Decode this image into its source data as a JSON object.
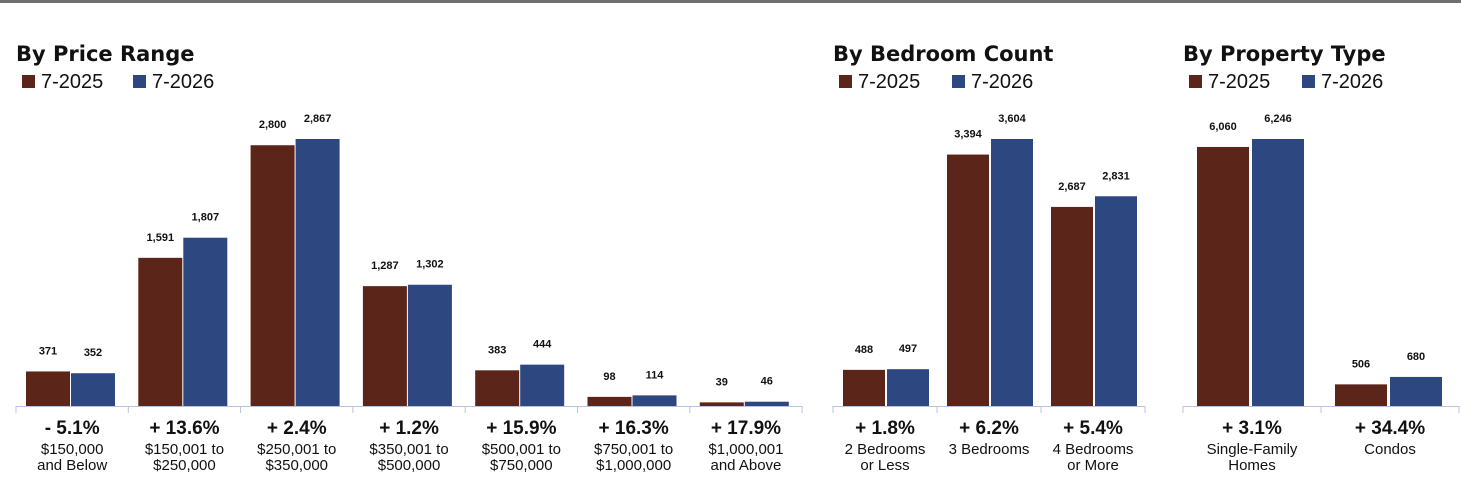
{
  "colors": {
    "series_2025": "#5c2519",
    "series_2026": "#2d4780",
    "axis": "#b8c3df"
  },
  "legend": {
    "series_a": "7-2025",
    "series_b": "7-2026"
  },
  "chart_data": [
    {
      "type": "bar",
      "title": "By Price Range",
      "categories": [
        [
          "$150,000",
          "and Below"
        ],
        [
          "$150,001 to",
          "$250,000"
        ],
        [
          "$250,001 to",
          "$350,000"
        ],
        [
          "$350,001 to",
          "$500,000"
        ],
        [
          "$500,001 to",
          "$750,000"
        ],
        [
          "$750,001 to",
          "$1,000,000"
        ],
        [
          "$1,000,001",
          "and Above"
        ]
      ],
      "series": [
        {
          "name": "7-2025",
          "values": [
            371,
            1591,
            2800,
            1287,
            383,
            98,
            39
          ],
          "labels": [
            "371",
            "1,591",
            "2,800",
            "1,287",
            "383",
            "98",
            "39"
          ]
        },
        {
          "name": "7-2026",
          "values": [
            352,
            1807,
            2867,
            1302,
            444,
            114,
            46
          ],
          "labels": [
            "352",
            "1,807",
            "2,867",
            "1,302",
            "444",
            "114",
            "46"
          ]
        }
      ],
      "changes": [
        "- 5.1%",
        "+ 13.6%",
        "+ 2.4%",
        "+ 1.2%",
        "+ 15.9%",
        "+ 16.3%",
        "+ 17.9%"
      ]
    },
    {
      "type": "bar",
      "title": "By Bedroom Count",
      "categories": [
        [
          "2 Bedrooms",
          "or Less"
        ],
        [
          "3 Bedrooms"
        ],
        [
          "4 Bedrooms",
          "or More"
        ]
      ],
      "series": [
        {
          "name": "7-2025",
          "values": [
            488,
            3394,
            2687
          ],
          "labels": [
            "488",
            "3,394",
            "2,687"
          ]
        },
        {
          "name": "7-2026",
          "values": [
            497,
            3604,
            2831
          ],
          "labels": [
            "497",
            "3,604",
            "2,831"
          ]
        }
      ],
      "changes": [
        "+ 1.8%",
        "+ 6.2%",
        "+ 5.4%"
      ]
    },
    {
      "type": "bar",
      "title": "By Property Type",
      "categories": [
        [
          "Single-Family",
          "Homes"
        ],
        [
          "Condos"
        ]
      ],
      "series": [
        {
          "name": "7-2025",
          "values": [
            6060,
            506
          ],
          "labels": [
            "6,060",
            "506"
          ]
        },
        {
          "name": "7-2026",
          "values": [
            6246,
            680
          ],
          "labels": [
            "6,246",
            "680"
          ]
        }
      ],
      "changes": [
        "+ 3.1%",
        "+ 34.4%"
      ]
    }
  ]
}
